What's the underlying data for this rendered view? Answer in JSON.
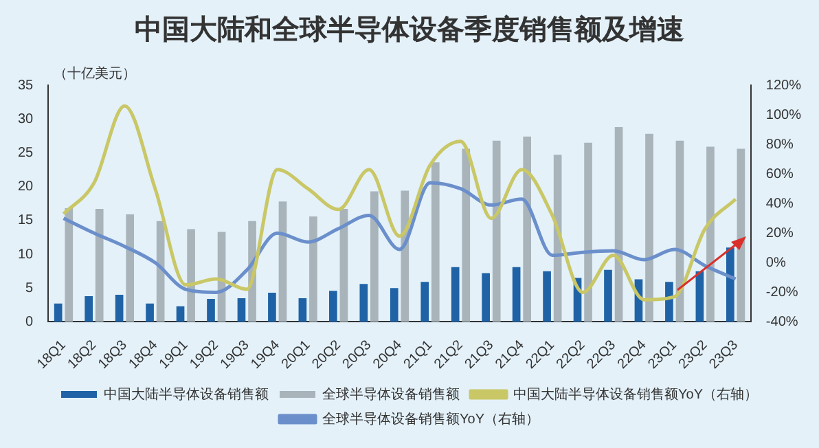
{
  "chart_data": {
    "type": "bar",
    "title": "中国大陆和全球半导体设备季度销售额及增速",
    "ylabel": "（十亿美元）",
    "categories": [
      "18Q1",
      "18Q2",
      "18Q3",
      "18Q4",
      "19Q1",
      "19Q2",
      "19Q3",
      "19Q4",
      "20Q1",
      "20Q2",
      "20Q3",
      "20Q4",
      "21Q1",
      "21Q2",
      "21Q3",
      "21Q4",
      "22Q1",
      "22Q2",
      "22Q3",
      "22Q4",
      "23Q1",
      "23Q2",
      "23Q3"
    ],
    "series": [
      {
        "name": "中国大陆半导体设备销售额",
        "color": "#1f63a6",
        "values": [
          2.7,
          3.8,
          4.0,
          2.7,
          2.3,
          3.4,
          3.5,
          4.3,
          3.5,
          4.6,
          5.6,
          5.0,
          5.9,
          8.1,
          7.2,
          8.1,
          7.5,
          6.5,
          7.7,
          6.3,
          5.9,
          7.5,
          11.0
        ]
      },
      {
        "name": "全球半导体设备销售额",
        "color": "#a8b3ba",
        "values": [
          16.8,
          16.7,
          15.9,
          14.9,
          13.7,
          13.3,
          14.9,
          17.8,
          15.6,
          16.7,
          19.3,
          19.4,
          23.6,
          25.6,
          26.8,
          27.4,
          24.7,
          26.5,
          28.8,
          27.8,
          26.8,
          25.9,
          25.6
        ]
      },
      {
        "name": "中国大陆半导体设备销售额YoY（右轴）",
        "type": "line",
        "axis": "y2",
        "color": "#c9c766",
        "values": [
          33,
          54,
          106,
          50,
          -15,
          -11,
          -18,
          63,
          50,
          36,
          63,
          18,
          66,
          82,
          30,
          63,
          32,
          -20,
          5,
          -25,
          -23,
          23,
          43
        ]
      },
      {
        "name": "全球半导体设备销售额YoY（右轴）",
        "type": "line",
        "axis": "y2",
        "color": "#6b8fcb",
        "values": [
          30,
          20,
          11,
          0,
          -18,
          -20,
          -5,
          20,
          14,
          23,
          32,
          9,
          54,
          50,
          39,
          43,
          5,
          7,
          8,
          2,
          9,
          -2,
          -11
        ]
      }
    ],
    "ylim": [
      0,
      35
    ],
    "yticks": [
      0,
      5,
      10,
      15,
      20,
      25,
      30,
      35
    ],
    "y2lim": [
      -40,
      120
    ],
    "y2ticks": [
      {
        "value": -40,
        "label": "-40%"
      },
      {
        "value": -20,
        "label": "-20%"
      },
      {
        "value": 0,
        "label": "0%"
      },
      {
        "value": 20,
        "label": "20%"
      },
      {
        "value": 40,
        "label": "40%"
      },
      {
        "value": 60,
        "label": "60%"
      },
      {
        "value": 80,
        "label": "80%"
      },
      {
        "value": 100,
        "label": "100%"
      },
      {
        "value": 120,
        "label": "120%"
      }
    ],
    "grid": false,
    "legend": "bottom"
  }
}
